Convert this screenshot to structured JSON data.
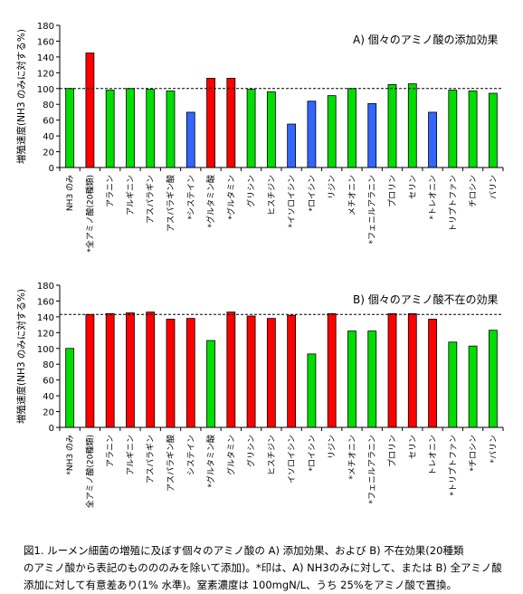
{
  "chart_data": [
    {
      "type": "bar",
      "title": "A) 個々のアミノ酸の添加効果",
      "ylabel": "増殖速度(NH3 のみに対する%)",
      "ylim": [
        0,
        180
      ],
      "yticks": [
        0,
        20,
        40,
        60,
        80,
        100,
        120,
        140,
        160,
        180
      ],
      "reference_line": 100,
      "grid": false,
      "categories": [
        "NH3 のみ",
        "*全アミノ酸(20種類)",
        "アラニン",
        "アルギニン",
        "アスパラギン",
        "アスパラギン酸",
        "*システイン",
        "*グルタミン酸",
        "*グルタミン",
        "グリシン",
        "ヒスチジン",
        "*イソロイシン",
        "*ロイシン",
        "リジン",
        "メチオニン",
        "*フェニルアラニン",
        "プロリン",
        "セリン",
        "*トレオニン",
        "トリプトファン",
        "チロシン",
        "バリン"
      ],
      "values": [
        100,
        145,
        98,
        100,
        99,
        97,
        70,
        113,
        113,
        99,
        96,
        55,
        84,
        91,
        100,
        81,
        105,
        106,
        70,
        98,
        97,
        94
      ],
      "colors": [
        "#00dd00",
        "#ff0000",
        "#00dd00",
        "#00dd00",
        "#00dd00",
        "#00dd00",
        "#3366ff",
        "#ff0000",
        "#ff0000",
        "#00dd00",
        "#00dd00",
        "#3366ff",
        "#3366ff",
        "#00dd00",
        "#00dd00",
        "#3366ff",
        "#00dd00",
        "#00dd00",
        "#3366ff",
        "#00dd00",
        "#00dd00",
        "#00dd00"
      ]
    },
    {
      "type": "bar",
      "title": "B) 個々のアミノ酸不在の効果",
      "ylabel": "増殖速度(NH3 のみに対する%)",
      "ylim": [
        0,
        180
      ],
      "yticks": [
        0,
        20,
        40,
        60,
        80,
        100,
        120,
        140,
        160,
        180
      ],
      "reference_line": 143,
      "grid": false,
      "categories": [
        "*NH3 のみ",
        "全アミノ酸(20種類)",
        "アラニン",
        "アルギニン",
        "アスパラギン",
        "アスパラギン酸",
        "システイン",
        "*グルタミン酸",
        "グルタミン",
        "グリシン",
        "ヒスチジン",
        "イソロイシン",
        "*ロイシン",
        "リジン",
        "*メチオニン",
        "*フェニルアラニン",
        "プロリン",
        "セリン",
        "トレオニン",
        "*トリプトファン",
        "*チロシン",
        "*バリン"
      ],
      "values": [
        100,
        143,
        144,
        145,
        146,
        137,
        138,
        110,
        146,
        141,
        138,
        142,
        93,
        144,
        122,
        122,
        144,
        144,
        137,
        108,
        103,
        123
      ],
      "colors": [
        "#00dd00",
        "#ff0000",
        "#ff0000",
        "#ff0000",
        "#ff0000",
        "#ff0000",
        "#ff0000",
        "#00dd00",
        "#ff0000",
        "#ff0000",
        "#ff0000",
        "#ff0000",
        "#00dd00",
        "#ff0000",
        "#00dd00",
        "#00dd00",
        "#ff0000",
        "#ff0000",
        "#ff0000",
        "#00dd00",
        "#00dd00",
        "#00dd00"
      ]
    }
  ],
  "caption": "図1. ルーメン細菌の増殖に及ぼす個々のアミノ酸の A) 添加効果、および B) 不在効果(20種類\nのアミノ酸から表記のものののみを除いて添加)。*印は、A) NH3のみに対して、または B) 全アミノ酸\n添加に対して有意差あり(1% 水準)。窒素濃度は 100mgN/L、うち 25%をアミノ酸で置換。"
}
